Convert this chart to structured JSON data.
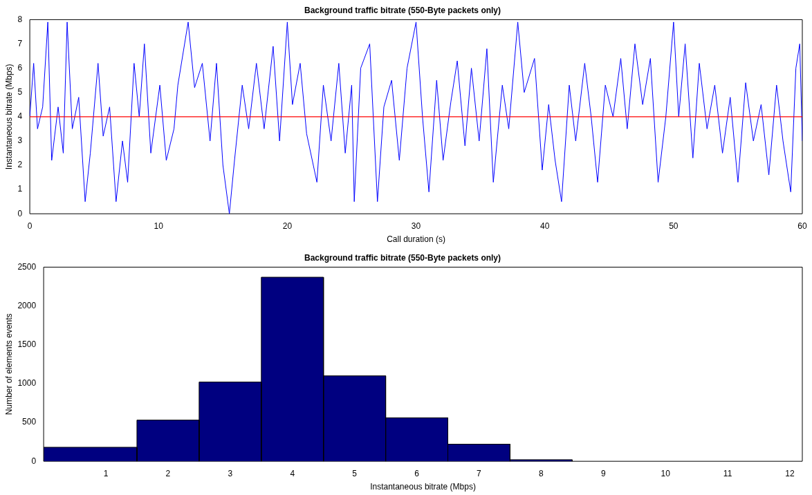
{
  "chart_data": [
    {
      "type": "line",
      "title": "Background traffic bitrate (550-Byte packets only)",
      "xlabel": "Call duration (s)",
      "ylabel": "Instantaneous bitrate (Mbps)",
      "x": [
        0,
        0.3,
        0.6,
        1.0,
        1.4,
        1.7,
        2.2,
        2.6,
        2.9,
        3.3,
        3.8,
        4.3,
        4.7,
        5.3,
        5.7,
        6.2,
        6.7,
        7.2,
        7.6,
        8.1,
        8.5,
        8.9,
        9.4,
        10.1,
        10.6,
        11.2,
        11.5,
        12.3,
        12.8,
        13.4,
        14.0,
        14.5,
        15.0,
        15.5,
        15.9,
        16.5,
        17.0,
        17.6,
        18.2,
        18.9,
        19.4,
        20.0,
        20.4,
        21.0,
        21.5,
        22.3,
        22.8,
        23.4,
        24.0,
        24.5,
        25.0,
        25.2,
        25.7,
        26.4,
        27.0,
        27.5,
        28.1,
        28.7,
        29.3,
        30.0,
        30.5,
        31.0,
        31.6,
        32.1,
        32.7,
        33.2,
        33.8,
        34.3,
        34.9,
        35.5,
        36.0,
        36.7,
        37.2,
        37.9,
        38.4,
        39.2,
        39.8,
        40.3,
        40.8,
        41.3,
        41.9,
        42.4,
        43.1,
        43.6,
        44.1,
        44.7,
        45.3,
        45.9,
        46.4,
        47.0,
        47.6,
        48.2,
        48.8,
        49.4,
        50.0,
        50.4,
        50.9,
        51.5,
        52.0,
        52.6,
        53.2,
        53.8,
        54.4,
        55.0,
        55.6,
        56.2,
        56.8,
        57.4,
        58.0,
        58.5,
        59.1,
        59.5,
        59.8,
        60
      ],
      "series": [
        {
          "color": "#0000ff",
          "values": [
            4,
            6.2,
            3.5,
            4.4,
            7.9,
            2.2,
            4.4,
            2.5,
            7.9,
            3.5,
            4.8,
            0.5,
            2.5,
            6.2,
            3.2,
            4.4,
            0.5,
            3.0,
            1.3,
            6.2,
            4.0,
            7.0,
            2.5,
            5.3,
            2.2,
            3.5,
            5.3,
            7.9,
            5.2,
            6.2,
            3.0,
            6.2,
            2.0,
            0,
            2.2,
            5.3,
            3.5,
            6.2,
            3.5,
            6.9,
            3.0,
            7.9,
            4.5,
            6.2,
            3.3,
            1.3,
            5.3,
            3.0,
            6.2,
            2.5,
            5.3,
            0.5,
            6.0,
            7.0,
            0.5,
            4.4,
            5.5,
            2.2,
            6.0,
            7.9,
            4.0,
            0.9,
            5.5,
            2.2,
            4.6,
            6.3,
            2.8,
            6.0,
            3.0,
            6.8,
            1.3,
            5.3,
            3.5,
            7.9,
            5.0,
            6.4,
            1.8,
            4.5,
            2.2,
            0.5,
            5.3,
            3.0,
            6.2,
            4.0,
            1.3,
            5.3,
            4.0,
            6.4,
            3.5,
            7.0,
            4.5,
            6.4,
            1.3,
            4.0,
            7.9,
            4.0,
            7.0,
            2.3,
            6.2,
            3.5,
            5.3,
            2.5,
            4.8,
            1.3,
            5.4,
            3.0,
            4.5,
            1.6,
            5.3,
            3.0,
            0.9,
            6.0,
            7.0,
            3.0
          ]
        }
      ],
      "ref_lines": [
        {
          "axis": "y",
          "value": 4,
          "color": "#ff0000"
        }
      ],
      "xlim": [
        0,
        60
      ],
      "xticks": [
        0,
        10,
        20,
        30,
        40,
        50,
        60
      ],
      "ylim": [
        0,
        8
      ],
      "yticks": [
        0,
        1,
        2,
        3,
        4,
        5,
        6,
        7,
        8
      ],
      "grid": false,
      "legend": false
    },
    {
      "type": "histogram",
      "title": "Background traffic bitrate (550-Byte packets only)",
      "xlabel": "Instantaneous bitrate (Mbps)",
      "ylabel": "Number of elements events",
      "bins": [
        0,
        1.5,
        2.5,
        3.5,
        4.5,
        5.5,
        6.5,
        7.5,
        8.5
      ],
      "values": [
        180,
        530,
        1020,
        2370,
        1100,
        560,
        220,
        20
      ],
      "color": "#000080",
      "xlim": [
        0,
        12.2
      ],
      "xticks": [
        1,
        2,
        3,
        4,
        5,
        6,
        7,
        8,
        9,
        10,
        11,
        12
      ],
      "ylim": [
        0,
        2500
      ],
      "yticks": [
        0,
        500,
        1000,
        1500,
        2000,
        2500
      ],
      "grid": false,
      "legend": false
    }
  ]
}
